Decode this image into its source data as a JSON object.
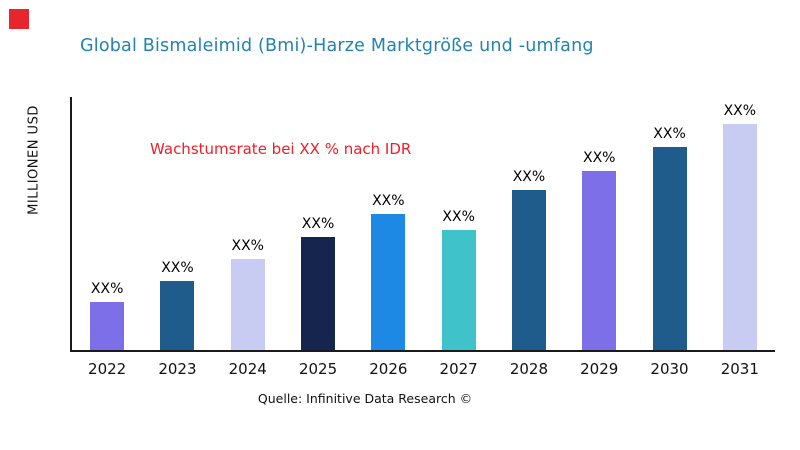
{
  "accent": {
    "brand_red": "#E8242C",
    "title_blue": "#2284AE",
    "annotation_red": "#F01E28",
    "axis_color": "#1a1a1a"
  },
  "header": {
    "title": "Global Bismaleimid (Bmi)-Harze Marktgröße und -umfang"
  },
  "annotation": {
    "growth_note": "Wachstumsrate bei XX % nach IDR"
  },
  "axis": {
    "y_label": "MILLIONEN USD"
  },
  "footer": {
    "source": "Quelle: Infinitive Data Research ©"
  },
  "chart_data": {
    "type": "bar",
    "title": "Global Bismaleimid (Bmi)-Harze Marktgröße und -umfang",
    "xlabel": "",
    "ylabel": "MILLIONEN USD",
    "categories": [
      "2022",
      "2023",
      "2024",
      "2025",
      "2026",
      "2027",
      "2028",
      "2029",
      "2030",
      "2031"
    ],
    "values": [
      49,
      71,
      94,
      116,
      140,
      123,
      164,
      184,
      209,
      232
    ],
    "value_labels": [
      "XX%",
      "XX%",
      "XX%",
      "XX%",
      "XX%",
      "XX%",
      "XX%",
      "XX%",
      "XX%",
      "XX%"
    ],
    "bar_colors": [
      "#7C6FE8",
      "#1F5C8B",
      "#C9CCF2",
      "#16254E",
      "#1E88E5",
      "#3FC2C9",
      "#1F5C8B",
      "#7C6FE8",
      "#1F5C8B",
      "#C9CCF2"
    ],
    "ylim": [
      0,
      260
    ],
    "grid": false,
    "legend": "none",
    "annotation": "Wachstumsrate bei XX % nach IDR",
    "source": "Quelle: Infinitive Data Research ©"
  }
}
